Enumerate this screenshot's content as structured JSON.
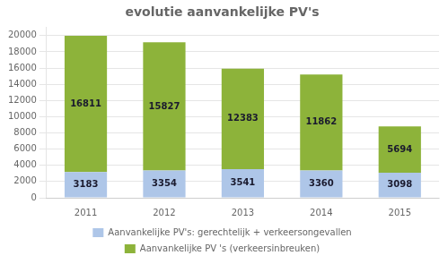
{
  "chart_data": {
    "type": "bar",
    "title": "evolutie aanvankelijke PV's",
    "categories": [
      "2011",
      "2012",
      "2013",
      "2014",
      "2015"
    ],
    "series": [
      {
        "name": "Aanvankelijke PV's: gerechtelijk + verkeersongevallen",
        "color": "#aec6e8",
        "values": [
          3183,
          3354,
          3541,
          3360,
          3098
        ]
      },
      {
        "name": "Aanvankelijke PV 's (verkeersinbreuken)",
        "color": "#8db33a",
        "values": [
          16811,
          15827,
          12383,
          11862,
          5694
        ]
      }
    ],
    "stacked": true,
    "ylim": [
      0,
      21000
    ],
    "yticks": [
      0,
      2000,
      4000,
      6000,
      8000,
      10000,
      12000,
      14000,
      16000,
      18000,
      20000
    ],
    "grid": true,
    "legend": "bottom",
    "data_labels": true
  }
}
